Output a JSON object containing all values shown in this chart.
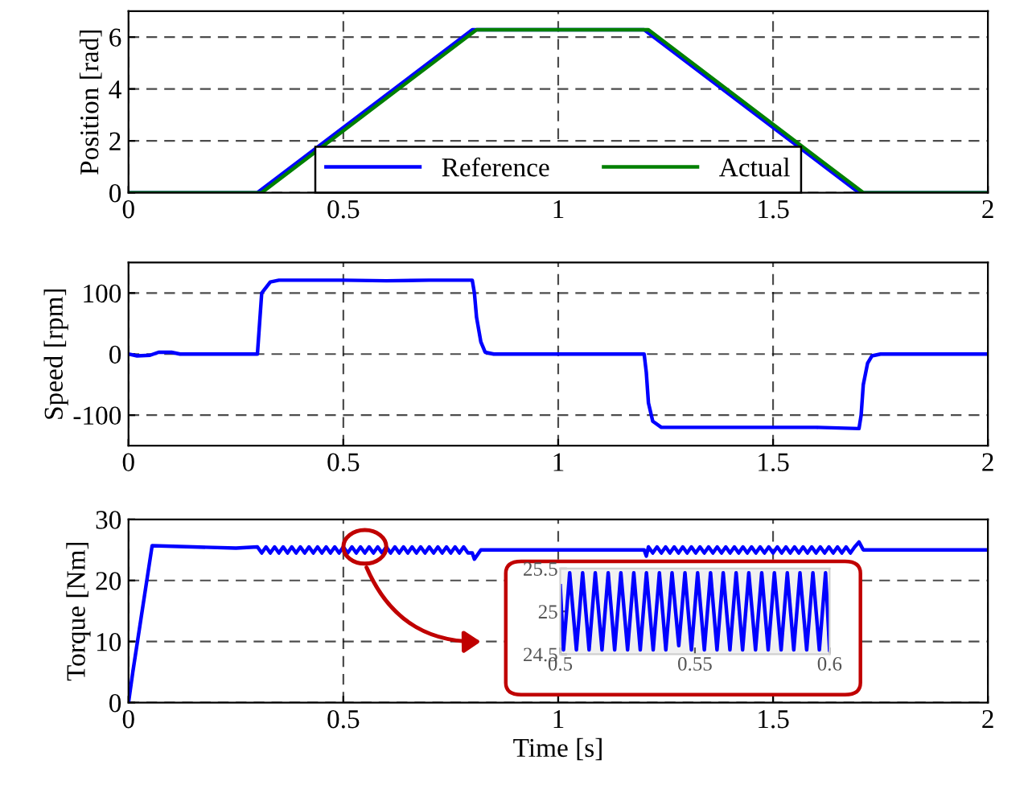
{
  "chart_data": [
    {
      "type": "line",
      "ylabel": "Position [rad]",
      "xlim": [
        0,
        2
      ],
      "ylim": [
        0,
        7
      ],
      "xticks": [
        0,
        0.5,
        1,
        1.5,
        2
      ],
      "yticks": [
        0,
        2,
        4,
        6
      ],
      "grid": true,
      "legend": "bottom",
      "series": [
        {
          "name": "Reference",
          "color": "#0000ff",
          "x": [
            0,
            0.3,
            0.8,
            1.2,
            1.7,
            2
          ],
          "values": [
            0,
            0,
            6.28,
            6.28,
            0,
            0
          ]
        },
        {
          "name": "Actual",
          "color": "#008000",
          "x": [
            0,
            0.31,
            0.81,
            1.21,
            1.71,
            2
          ],
          "values": [
            0,
            0,
            6.28,
            6.28,
            0,
            0
          ]
        }
      ]
    },
    {
      "type": "line",
      "ylabel": "Speed [rpm]",
      "xlim": [
        0,
        2
      ],
      "ylim": [
        -150,
        150
      ],
      "xticks": [
        0,
        0.5,
        1,
        1.5,
        2
      ],
      "yticks": [
        -100,
        0,
        100
      ],
      "grid": true,
      "series": [
        {
          "color": "#0000ff",
          "x": [
            0,
            0.02,
            0.05,
            0.07,
            0.1,
            0.12,
            0.3,
            0.305,
            0.31,
            0.33,
            0.35,
            0.5,
            0.6,
            0.7,
            0.8,
            0.805,
            0.81,
            0.82,
            0.83,
            0.85,
            1.2,
            1.205,
            1.21,
            1.22,
            1.24,
            1.4,
            1.6,
            1.7,
            1.705,
            1.71,
            1.72,
            1.73,
            1.75,
            2
          ],
          "values": [
            0,
            -3,
            -2,
            3,
            3,
            0,
            0,
            50,
            100,
            118,
            121,
            121,
            120,
            121,
            121,
            100,
            60,
            20,
            3,
            0,
            0,
            -30,
            -80,
            -110,
            -120,
            -120,
            -120,
            -122,
            -100,
            -50,
            -15,
            -3,
            0,
            0
          ]
        }
      ]
    },
    {
      "type": "line",
      "ylabel": "Torque [Nm]",
      "xlabel": "Time [s]",
      "xlim": [
        0,
        2
      ],
      "ylim": [
        0,
        30
      ],
      "xticks": [
        0,
        0.5,
        1,
        1.5,
        2
      ],
      "yticks": [
        0,
        10,
        20,
        30
      ],
      "grid": true,
      "series": [
        {
          "color": "#0000ff",
          "x": [
            0,
            0.01,
            0.055,
            0.15,
            0.25,
            0.3,
            0.31,
            0.32,
            0.33,
            0.34,
            0.35,
            0.36,
            0.37,
            0.38,
            0.39,
            0.4,
            0.41,
            0.42,
            0.43,
            0.44,
            0.45,
            0.46,
            0.47,
            0.48,
            0.49,
            0.5,
            0.51,
            0.52,
            0.53,
            0.54,
            0.55,
            0.56,
            0.57,
            0.58,
            0.59,
            0.6,
            0.61,
            0.62,
            0.63,
            0.64,
            0.65,
            0.66,
            0.67,
            0.68,
            0.69,
            0.7,
            0.71,
            0.72,
            0.73,
            0.74,
            0.75,
            0.76,
            0.77,
            0.78,
            0.79,
            0.8,
            0.805,
            0.82,
            1.2,
            1.205,
            1.21,
            1.22,
            1.23,
            1.24,
            1.25,
            1.26,
            1.27,
            1.28,
            1.29,
            1.3,
            1.31,
            1.32,
            1.33,
            1.34,
            1.35,
            1.36,
            1.37,
            1.38,
            1.39,
            1.4,
            1.41,
            1.42,
            1.43,
            1.44,
            1.45,
            1.46,
            1.47,
            1.48,
            1.49,
            1.5,
            1.51,
            1.52,
            1.53,
            1.54,
            1.55,
            1.56,
            1.57,
            1.58,
            1.59,
            1.6,
            1.61,
            1.62,
            1.63,
            1.64,
            1.65,
            1.66,
            1.67,
            1.68,
            1.69,
            1.7,
            1.71,
            2
          ],
          "values": [
            0,
            5,
            25.7,
            25.5,
            25.3,
            25.5,
            24.5,
            25.5,
            24.5,
            25.5,
            24.5,
            25.5,
            24.5,
            25.5,
            24.5,
            25.5,
            24.5,
            25.5,
            24.5,
            25.5,
            24.5,
            25.5,
            24.5,
            25.5,
            24.5,
            25.5,
            24.5,
            25.5,
            24.5,
            25.5,
            24.5,
            25.5,
            24.5,
            25.5,
            24.5,
            25.5,
            24.5,
            25.5,
            24.5,
            25.5,
            24.5,
            25.5,
            24.5,
            25.5,
            24.5,
            25.5,
            24.5,
            25.5,
            24.5,
            25.5,
            24.5,
            25.5,
            24.5,
            25.5,
            24.5,
            24.5,
            23.5,
            25,
            25,
            24,
            25.5,
            24.5,
            25.5,
            24.5,
            25.5,
            24.5,
            25.5,
            24.5,
            25.5,
            24.5,
            25.5,
            24.5,
            25.5,
            24.5,
            25.5,
            24.5,
            25.5,
            24.5,
            25.5,
            24.5,
            25.5,
            24.5,
            25.5,
            24.5,
            25.5,
            24.5,
            25.5,
            24.5,
            25.5,
            24.5,
            25.5,
            24.5,
            25.5,
            24.5,
            25.5,
            24.5,
            25.5,
            24.5,
            25.5,
            24.5,
            25.5,
            24.5,
            25.5,
            24.5,
            25.5,
            24.5,
            25.5,
            24.5,
            25.5,
            26.3,
            25,
            25
          ]
        }
      ]
    },
    {
      "type": "line",
      "xlim": [
        0.5,
        0.6
      ],
      "ylim": [
        24.5,
        25.5
      ],
      "xticks": [
        0.5,
        0.55,
        0.6
      ],
      "yticks": [
        24.5,
        25,
        25.5
      ],
      "series": [
        {
          "color": "#0000ff",
          "x": [
            0.5,
            0.5012,
            0.5035,
            0.506,
            0.5083,
            0.5107,
            0.513,
            0.5155,
            0.5178,
            0.5202,
            0.5225,
            0.525,
            0.5273,
            0.5297,
            0.532,
            0.5345,
            0.5368,
            0.5392,
            0.5415,
            0.544,
            0.5463,
            0.5487,
            0.551,
            0.5535,
            0.5558,
            0.5582,
            0.5605,
            0.563,
            0.5653,
            0.5677,
            0.57,
            0.5725,
            0.5748,
            0.5772,
            0.5795,
            0.582,
            0.5843,
            0.5867,
            0.589,
            0.5915,
            0.5938,
            0.5962,
            0.5985,
            0.6
          ],
          "values": [
            25.3,
            24.55,
            25.45,
            24.55,
            25.45,
            24.55,
            25.45,
            24.55,
            25.45,
            24.55,
            25.45,
            24.55,
            25.45,
            24.55,
            25.45,
            24.55,
            25.45,
            24.55,
            25.45,
            24.6,
            25.45,
            24.55,
            25.45,
            24.55,
            25.45,
            24.55,
            25.45,
            24.55,
            25.45,
            24.55,
            25.45,
            24.55,
            25.45,
            24.55,
            25.45,
            24.55,
            25.45,
            24.55,
            25.45,
            24.55,
            25.45,
            24.55,
            25.45,
            24.55
          ]
        }
      ]
    }
  ]
}
